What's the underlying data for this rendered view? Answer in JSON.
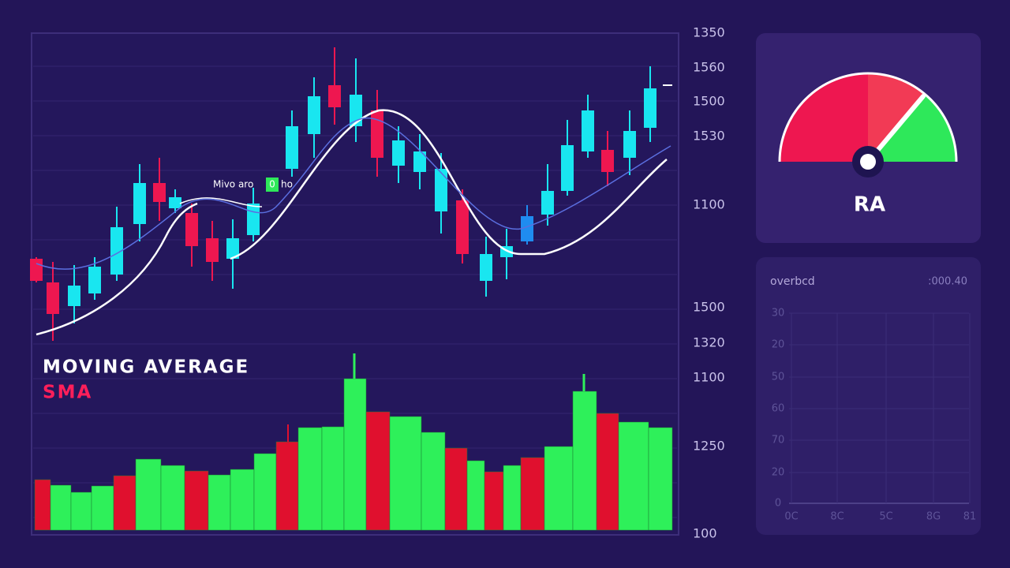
{
  "price_panel": {
    "annotation": [
      "Mivo aro",
      "0",
      "ho"
    ],
    "title": "MOVING AVERAGE",
    "subtitle": "SMA",
    "axis_labels": [
      "1350",
      "1560",
      "1500",
      "1530",
      "1100",
      "1500",
      "1320",
      "1100",
      "1250",
      "100"
    ]
  },
  "gauge": {
    "label": "RA"
  },
  "indicator": {
    "title": "overbcd",
    "value": ":000.40",
    "y_labels": [
      "30",
      "20",
      "50",
      "60",
      "70",
      "20",
      "0"
    ],
    "x_labels": [
      "0C",
      "8C",
      "5C",
      "8G",
      "81"
    ]
  }
}
